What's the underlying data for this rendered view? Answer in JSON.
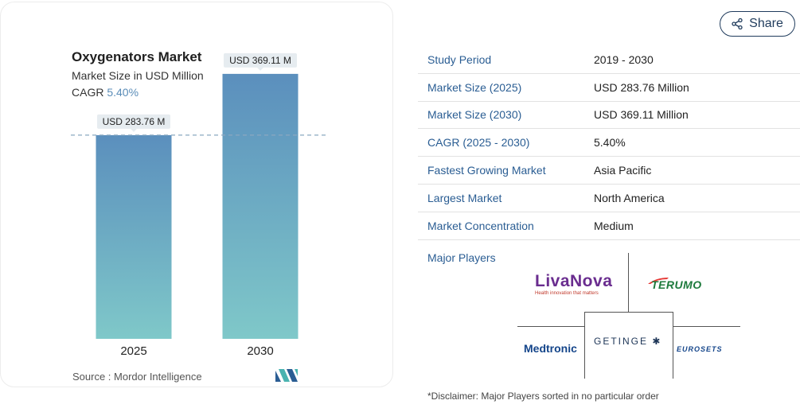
{
  "chart_card": {
    "title": "Oxygenators Market",
    "subtitle": "Market Size in USD Million",
    "cagr_label": "CAGR",
    "cagr_value": "5.40%",
    "source": "Source :  Mordor Intelligence"
  },
  "chart_data": {
    "type": "bar",
    "categories": [
      "2025",
      "2030"
    ],
    "values": [
      283.76,
      369.11
    ],
    "data_labels": [
      "USD 283.76 M",
      "USD 369.11 M"
    ],
    "ylim": [
      0,
      400
    ],
    "reference_line": 283.76,
    "grid": false,
    "colors": {
      "bar_top": "#5b8fbd",
      "bar_bottom": "#7fc8c9",
      "label_bg": "#e6ecf0",
      "dashed_line": "#8aa8c0"
    }
  },
  "share": {
    "label": "Share",
    "icon": "share-icon"
  },
  "stats": [
    {
      "key": "Study Period",
      "value": "2019 - 2030"
    },
    {
      "key": "Market Size (2025)",
      "value": "USD 283.76 Million"
    },
    {
      "key": "Market Size (2030)",
      "value": "USD 369.11 Million"
    },
    {
      "key": "CAGR (2025 - 2030)",
      "value": "5.40%"
    },
    {
      "key": "Fastest Growing Market",
      "value": "Asia Pacific"
    },
    {
      "key": "Largest Market",
      "value": "North America"
    },
    {
      "key": "Market Concentration",
      "value": "Medium"
    }
  ],
  "players": {
    "label": "Major Players",
    "livanova": "LivaNova",
    "livanova_tagline": "Health innovation that matters",
    "terumo": "TERUMO",
    "medtronic": "Medtronic",
    "getinge": "GETINGE",
    "eurosets": "EUROSETS"
  },
  "disclaimer": "*Disclaimer: Major Players sorted in no particular order"
}
